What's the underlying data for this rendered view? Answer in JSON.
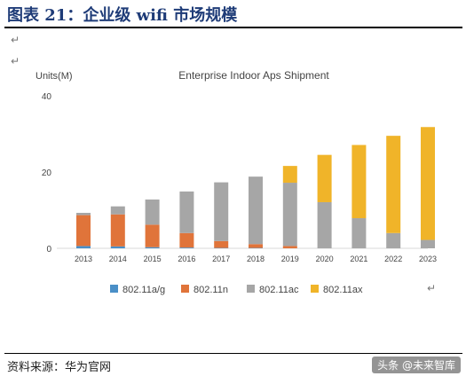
{
  "figure_title": "图表 21：企业级 wifi 市场规模",
  "source": "资料来源：华为官网",
  "watermark": "头条 @未来智库",
  "paragraph_mark": "↵",
  "chart_data": {
    "type": "bar",
    "stacked": true,
    "title": "Enterprise Indoor Aps Shipment",
    "ylabel": "Units(M)",
    "xlabel": "",
    "ylim": [
      0,
      40
    ],
    "yticks": [
      0,
      20,
      40
    ],
    "grid": false,
    "legend_position": "bottom",
    "categories": [
      "2013",
      "2014",
      "2015",
      "2016",
      "2017",
      "2018",
      "2019",
      "2020",
      "2021",
      "2022",
      "2023"
    ],
    "series": [
      {
        "name": "802.11a/g",
        "color": "#4a8fc7",
        "values": [
          0.6,
          0.5,
          0.3,
          0.2,
          0.1,
          0.1,
          0,
          0,
          0,
          0,
          0
        ]
      },
      {
        "name": "802.11n",
        "color": "#e0743a",
        "values": [
          8.1,
          8.4,
          5.9,
          3.8,
          1.8,
          1.0,
          0.6,
          0,
          0,
          0,
          0
        ]
      },
      {
        "name": "802.11ac",
        "color": "#a6a6a6",
        "values": [
          0.6,
          2.1,
          6.6,
          10.9,
          15.4,
          17.7,
          16.6,
          12.1,
          7.9,
          4.0,
          2.2
        ]
      },
      {
        "name": "802.11ax",
        "color": "#f0b429",
        "values": [
          0,
          0,
          0,
          0,
          0,
          0,
          4.4,
          12.4,
          19.2,
          25.5,
          29.6
        ]
      }
    ]
  }
}
